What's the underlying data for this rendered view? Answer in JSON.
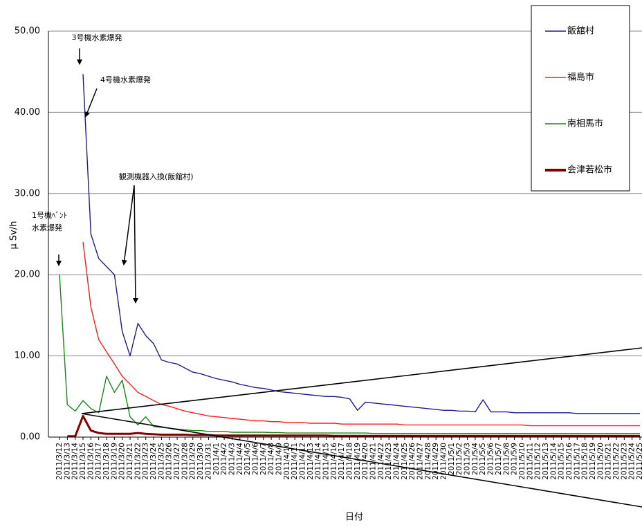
{
  "chart_data": {
    "type": "line",
    "y_label": "μ Sv/h",
    "x_label": "日付",
    "categories": [
      "2011/3/12",
      "2011/3/13",
      "2011/3/14",
      "2011/3/15",
      "2011/3/16",
      "2011/3/17",
      "2011/3/18",
      "2011/3/19",
      "2011/3/20",
      "2011/3/21",
      "2011/3/22",
      "2011/3/23",
      "2011/3/24",
      "2011/3/25",
      "2011/3/26",
      "2011/3/27",
      "2011/3/28",
      "2011/3/29",
      "2011/3/30",
      "2011/3/31",
      "2011/4/1",
      "2011/4/2",
      "2011/4/3",
      "2011/4/4",
      "2011/4/5",
      "2011/4/6",
      "2011/4/7",
      "2011/4/8",
      "2011/4/9",
      "2011/4/10",
      "2011/4/11",
      "2011/4/12",
      "2011/4/13",
      "2011/4/14",
      "2011/4/15",
      "2011/4/16",
      "2011/4/17",
      "2011/4/18",
      "2011/4/19",
      "2011/4/20",
      "2011/4/21",
      "2011/4/22",
      "2011/4/23",
      "2011/4/24",
      "2011/4/25",
      "2011/4/26",
      "2011/4/27",
      "2011/4/28",
      "2011/4/29",
      "2011/4/30",
      "2011/5/1",
      "2011/5/2",
      "2011/5/3",
      "2011/5/4",
      "2011/5/5",
      "2011/5/6",
      "2011/5/7",
      "2011/5/8",
      "2011/5/9",
      "2011/5/10",
      "2011/5/11",
      "2011/5/12",
      "2011/5/13",
      "2011/5/14",
      "2011/5/15",
      "2011/5/16",
      "2011/5/17",
      "2011/5/18",
      "2011/5/19",
      "2011/5/20",
      "2011/5/21",
      "2011/5/22",
      "2011/5/23",
      "2011/5/24",
      "2011/5/25"
    ],
    "series": [
      {
        "name": "飯舘村",
        "color": "#1c1c8c",
        "values": [
          null,
          null,
          null,
          44.7,
          25,
          22,
          21,
          20,
          13,
          10,
          14,
          12.5,
          11.5,
          9.5,
          9.2,
          9,
          8.5,
          8,
          7.8,
          7.5,
          7.2,
          7,
          6.8,
          6.5,
          6.3,
          6.1,
          6,
          5.8,
          5.6,
          5.5,
          5.4,
          5.3,
          5.2,
          5.1,
          5,
          5,
          4.9,
          4.7,
          3.3,
          4.3,
          4.2,
          4.1,
          4,
          3.9,
          3.8,
          3.7,
          3.6,
          3.5,
          3.4,
          3.3,
          3.3,
          3.2,
          3.2,
          3.1,
          4.6,
          3.1,
          3.1,
          3.1,
          3,
          3,
          3,
          3,
          3,
          3,
          3,
          3,
          2.9,
          2.9,
          2.9,
          2.9,
          2.9,
          2.9,
          2.9,
          2.9,
          2.9
        ]
      },
      {
        "name": "福島市",
        "color": "#ff1a1a",
        "values": [
          null,
          null,
          null,
          24,
          16,
          12,
          10.5,
          9,
          7.5,
          6.5,
          5.5,
          5,
          4.5,
          4,
          3.8,
          3.5,
          3.2,
          3,
          2.8,
          2.6,
          2.5,
          2.4,
          2.3,
          2.2,
          2.1,
          2,
          2,
          1.9,
          1.9,
          1.8,
          1.8,
          1.8,
          1.7,
          1.7,
          1.7,
          1.7,
          1.6,
          1.6,
          1.6,
          1.6,
          1.6,
          1.6,
          1.6,
          1.6,
          1.5,
          1.5,
          1.5,
          1.5,
          1.5,
          1.5,
          1.5,
          1.5,
          1.5,
          1.5,
          1.5,
          1.5,
          1.5,
          1.5,
          1.5,
          1.5,
          1.4,
          1.4,
          1.4,
          1.4,
          1.4,
          1.4,
          1.4,
          1.4,
          1.4,
          1.4,
          1.4,
          1.4,
          1.4,
          1.4,
          1.4
        ]
      },
      {
        "name": "南相馬市",
        "color": "#138a13",
        "values": [
          20,
          4,
          3.2,
          4.5,
          3.5,
          3,
          7.5,
          5.5,
          7,
          2.5,
          1.5,
          2.5,
          1.3,
          1.2,
          1.1,
          1,
          0.9,
          0.8,
          0.8,
          0.7,
          0.7,
          0.7,
          0.6,
          0.6,
          0.6,
          0.6,
          0.6,
          0.55,
          0.55,
          0.5,
          0.5,
          0.5,
          0.5,
          0.5,
          0.5,
          0.5,
          0.5,
          0.5,
          0.5,
          0.5,
          0.45,
          0.45,
          0.45,
          0.45,
          0.45,
          0.45,
          0.45,
          0.45,
          0.45,
          0.45,
          0.45,
          0.45,
          0.45,
          0.45,
          0.45,
          0.45,
          0.45,
          0.45,
          0.45,
          0.45,
          0.45,
          0.45,
          0.45,
          0.45,
          0.45,
          0.45,
          0.45,
          0.45,
          0.45,
          0.45,
          0.45,
          0.45,
          0.45,
          0.45,
          0.45
        ]
      },
      {
        "name": "会津若松市",
        "color": "#800000",
        "values": [
          null,
          0.1,
          0.1,
          2.6,
          0.8,
          0.5,
          0.4,
          0.4,
          0.4,
          0.4,
          0.5,
          0.4,
          0.35,
          0.3,
          0.3,
          0.3,
          0.3,
          0.25,
          0.25,
          0.25,
          0.2,
          0.2,
          0.2,
          0.2,
          0.2,
          0.2,
          0.2,
          0.2,
          0.2,
          0.2,
          0.2,
          0.2,
          0.2,
          0.2,
          0.2,
          0.15,
          0.15,
          0.15,
          0.15,
          0.15,
          0.15,
          0.15,
          0.15,
          0.15,
          0.15,
          0.15,
          0.15,
          0.15,
          0.15,
          0.15,
          0.15,
          0.15,
          0.15,
          0.15,
          0.15,
          0.15,
          0.15,
          0.15,
          0.15,
          0.15,
          0.15,
          0.15,
          0.15,
          0.15,
          0.15,
          0.15,
          0.15,
          0.15,
          0.15,
          0.15,
          0.15,
          0.15,
          0.15,
          0.15,
          0.15
        ]
      }
    ],
    "ylim": [
      0,
      50
    ],
    "yticks": [
      {
        "value": 0,
        "label": "0.00"
      },
      {
        "value": 10,
        "label": "10.00"
      },
      {
        "value": 20,
        "label": "20.00"
      },
      {
        "value": 30,
        "label": "30.00"
      },
      {
        "value": 40,
        "label": "40.00"
      },
      {
        "value": 50,
        "label": "50.00"
      }
    ],
    "grid": true,
    "legend": "upper right",
    "annotations": [
      "3号機水素爆発",
      "4号機水素爆発",
      "観測機器入換(飯舘村)",
      "1号機ﾍﾞﾝﾄ",
      "水素爆発"
    ]
  }
}
